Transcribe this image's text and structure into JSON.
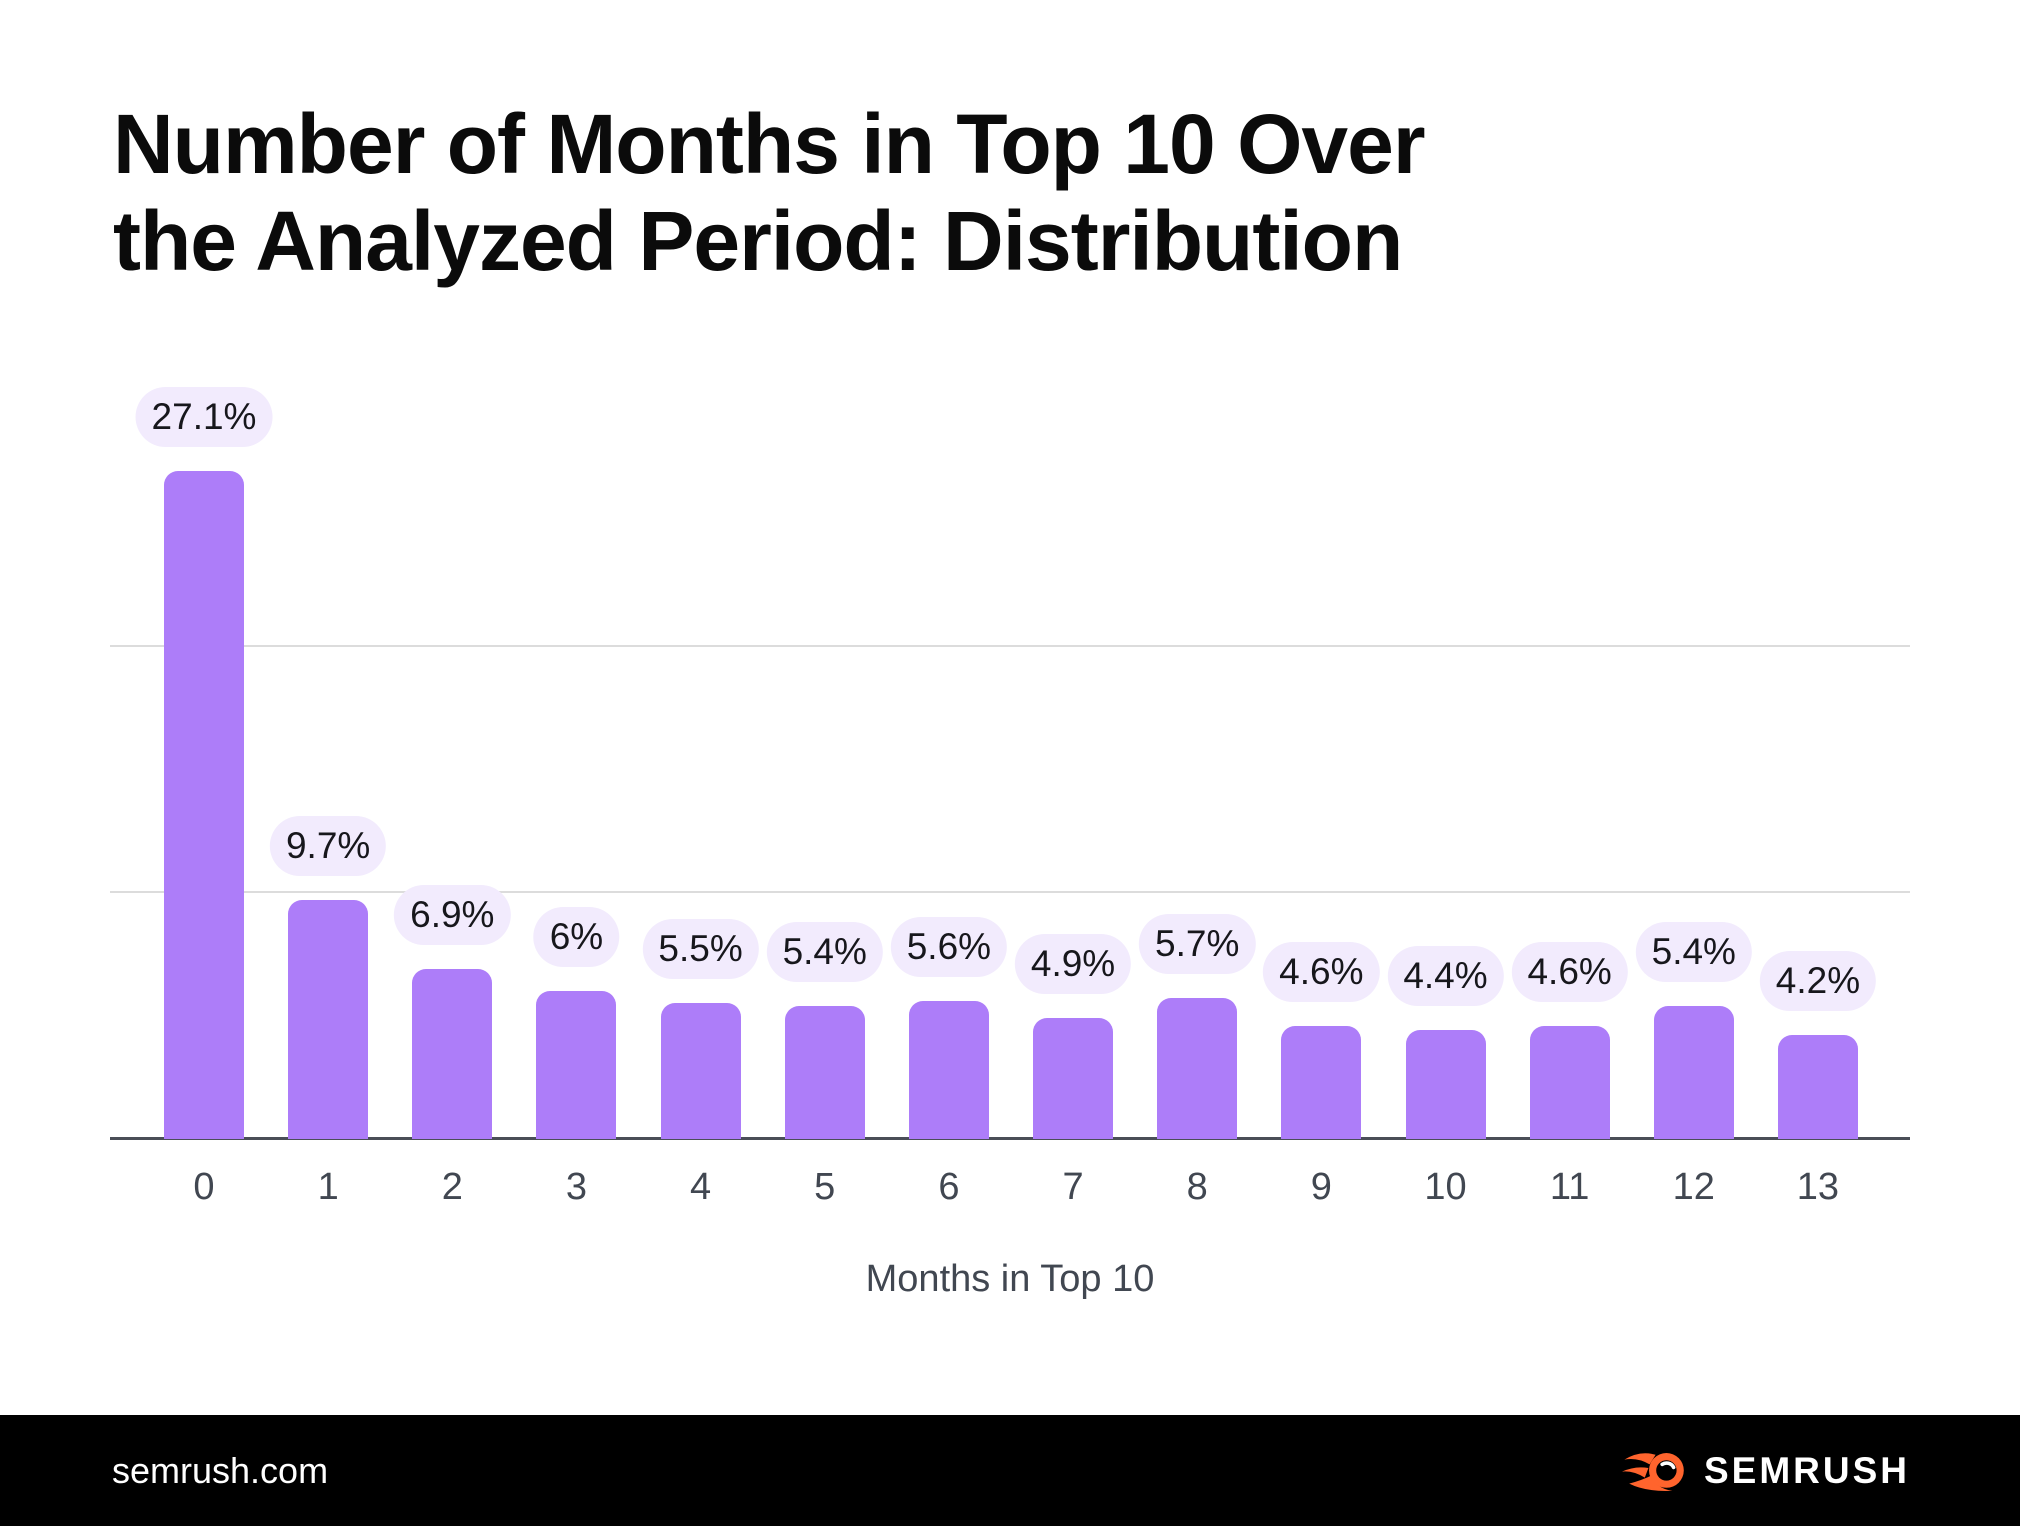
{
  "title_lines": [
    "Number of Months in Top 10 Over",
    "the Analyzed Period: Distribution"
  ],
  "chart_data": {
    "type": "bar",
    "title": "Number of Months in Top 10 Over the Analyzed Period: Distribution",
    "xlabel": "Months in Top 10",
    "ylabel": "",
    "categories": [
      "0",
      "1",
      "2",
      "3",
      "4",
      "5",
      "6",
      "7",
      "8",
      "9",
      "10",
      "11",
      "12",
      "13"
    ],
    "values": [
      27.1,
      9.7,
      6.9,
      6,
      5.5,
      5.4,
      5.6,
      4.9,
      5.7,
      4.6,
      4.4,
      4.6,
      5.4,
      4.2
    ],
    "value_labels": [
      "27.1%",
      "9.7%",
      "6.9%",
      "6%",
      "5.5%",
      "5.4%",
      "5.6%",
      "4.9%",
      "5.7%",
      "4.6%",
      "4.4%",
      "4.6%",
      "5.4%",
      "4.2%"
    ],
    "ylim": [
      0,
      30
    ],
    "gridline_values": [
      10,
      20
    ],
    "grid": "horizontal",
    "legend_position": "none",
    "bar_color": "#ad7df9",
    "label_pill_color": "#f2ebfd"
  },
  "footer": {
    "site_url": "semrush.com",
    "logo_text": "SEMRUSH",
    "brand_orange": "#ff642d"
  }
}
